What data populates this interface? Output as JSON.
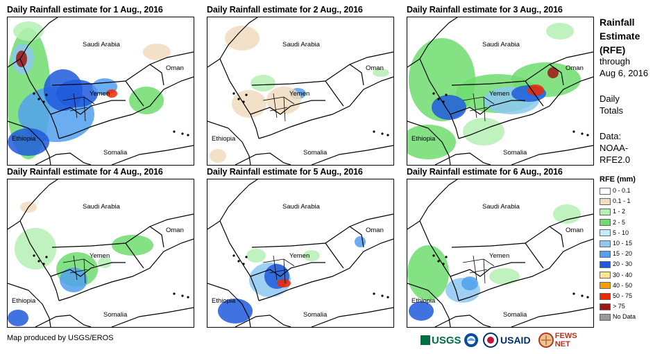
{
  "panels": [
    {
      "title": "Daily Rainfall estimate for 1 Aug., 2016"
    },
    {
      "title": "Daily Rainfall estimate for 2 Aug., 2016"
    },
    {
      "title": "Daily Rainfall estimate for 3 Aug., 2016"
    },
    {
      "title": "Daily Rainfall estimate for 4 Aug., 2016"
    },
    {
      "title": "Daily Rainfall estimate for 5 Aug., 2016"
    },
    {
      "title": "Daily Rainfall estimate for 6 Aug., 2016"
    }
  ],
  "map_labels": {
    "saudi_arabia": "Saudi Arabia",
    "oman": "Oman",
    "yemen": "Yemen",
    "ethiopia": "Ethiopia",
    "somalia": "Somalia"
  },
  "side": {
    "title_line1": "Rainfall",
    "title_line2": "Estimate",
    "title_line3": "(RFE)",
    "through": "through",
    "date": "Aug 6, 2016",
    "daily": "Daily",
    "totals": "Totals",
    "data_label": "Data:",
    "data_src1": "NOAA-",
    "data_src2": "RFE2.0"
  },
  "legend": {
    "title": "RFE (mm)",
    "items": [
      {
        "label": "0 - 0.1",
        "color": "#ffffff"
      },
      {
        "label": "0.1 - 1",
        "color": "#f0dcbe"
      },
      {
        "label": "1 - 2",
        "color": "#b4f0b4"
      },
      {
        "label": "2 - 5",
        "color": "#6edc6e"
      },
      {
        "label": "5 - 10",
        "color": "#c0ecf8"
      },
      {
        "label": "10 - 15",
        "color": "#8cc8f0"
      },
      {
        "label": "15 - 20",
        "color": "#50a0ee"
      },
      {
        "label": "20 - 30",
        "color": "#1e5adc"
      },
      {
        "label": "30 - 40",
        "color": "#ffe68c"
      },
      {
        "label": "40 - 50",
        "color": "#f0a000"
      },
      {
        "label": "50 - 75",
        "color": "#f02800"
      },
      {
        "label": "> 75",
        "color": "#a01414"
      },
      {
        "label": "No Data",
        "color": "#9a9a9a"
      }
    ]
  },
  "credit": "Map produced by USGS/EROS",
  "logos": {
    "usgs": "USGS",
    "usaid": "USAID",
    "fews": "FEWS NET"
  }
}
